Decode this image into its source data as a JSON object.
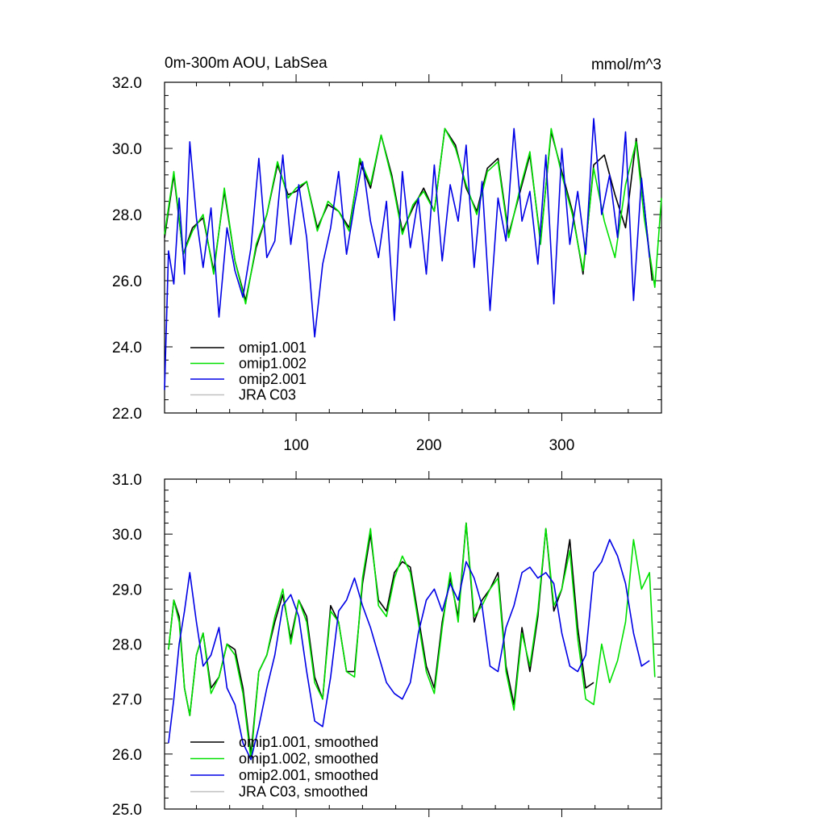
{
  "colors": {
    "omip1_001": "#000000",
    "omip1_002": "#00e000",
    "omip2_001": "#0000e6",
    "jra_c03": "#c0c0c0",
    "axis": "#000000",
    "background": "#ffffff"
  },
  "chart_data": [
    {
      "type": "line",
      "title_left": "0m-300m AOU, LabSea",
      "title_right": "mmol/m^3",
      "xlabel": "",
      "ylabel": "",
      "xlim": [
        1,
        375
      ],
      "ylim": [
        22.0,
        32.0
      ],
      "x_ticks": [
        100,
        200,
        300
      ],
      "x_tick_labels": [
        "100",
        "200",
        "300"
      ],
      "y_ticks": [
        22.0,
        24.0,
        26.0,
        28.0,
        30.0,
        32.0
      ],
      "y_tick_labels": [
        "22.0",
        "24.0",
        "26.0",
        "28.0",
        "30.0",
        "32.0"
      ],
      "legend_position": "lower-left",
      "series": [
        {
          "name": "omip1.001",
          "color_key": "omip1_001",
          "x": [
            1,
            8,
            15,
            22,
            30,
            38,
            46,
            54,
            62,
            70,
            78,
            86,
            94,
            100,
            108,
            116,
            124,
            132,
            140,
            148,
            156,
            164,
            172,
            180,
            188,
            196,
            204,
            212,
            220,
            228,
            236,
            244,
            252,
            260,
            268,
            276,
            284,
            292,
            300,
            308,
            316,
            324,
            332,
            340,
            348,
            356,
            362,
            368
          ],
          "y": [
            27.3,
            29.2,
            26.8,
            27.6,
            27.9,
            26.3,
            28.7,
            26.6,
            25.4,
            27.0,
            28.0,
            29.5,
            28.6,
            28.7,
            29.0,
            27.6,
            28.3,
            28.1,
            27.6,
            29.6,
            28.8,
            30.4,
            29.2,
            27.5,
            28.2,
            28.8,
            28.1,
            30.6,
            30.1,
            28.8,
            28.1,
            29.4,
            29.7,
            27.4,
            28.6,
            29.8,
            27.2,
            30.5,
            29.3,
            28.1,
            26.2,
            29.5,
            29.8,
            28.6,
            27.6,
            30.3,
            28.3,
            26.0
          ]
        },
        {
          "name": "omip1.002",
          "color_key": "omip1_002",
          "x": [
            1,
            8,
            15,
            22,
            30,
            38,
            46,
            54,
            62,
            70,
            78,
            86,
            94,
            100,
            108,
            116,
            124,
            132,
            140,
            148,
            156,
            164,
            172,
            180,
            188,
            196,
            204,
            212,
            220,
            228,
            236,
            244,
            252,
            260,
            268,
            276,
            284,
            292,
            300,
            308,
            316,
            324,
            332,
            340,
            348,
            356,
            362,
            370,
            375
          ],
          "y": [
            27.4,
            29.3,
            26.8,
            27.5,
            28.0,
            26.2,
            28.8,
            26.6,
            25.3,
            27.1,
            28.0,
            29.6,
            28.5,
            28.8,
            29.0,
            27.5,
            28.4,
            28.1,
            27.5,
            29.7,
            28.9,
            30.4,
            29.1,
            27.4,
            28.3,
            28.7,
            28.1,
            30.6,
            30.0,
            28.9,
            28.0,
            29.3,
            29.6,
            27.3,
            28.7,
            29.9,
            27.1,
            30.6,
            29.2,
            28.0,
            26.3,
            29.4,
            27.8,
            26.7,
            28.9,
            30.2,
            27.9,
            25.8,
            28.5
          ]
        },
        {
          "name": "omip2.001",
          "color_key": "omip2_001",
          "x": [
            1,
            4,
            8,
            12,
            16,
            20,
            25,
            30,
            36,
            42,
            48,
            54,
            60,
            66,
            72,
            78,
            84,
            90,
            96,
            102,
            108,
            114,
            120,
            126,
            132,
            138,
            144,
            150,
            156,
            162,
            168,
            174,
            180,
            186,
            192,
            198,
            204,
            210,
            216,
            222,
            228,
            234,
            240,
            246,
            252,
            258,
            264,
            270,
            276,
            282,
            288,
            294,
            300,
            306,
            312,
            318,
            324,
            330,
            336,
            342,
            348,
            354,
            360,
            366
          ],
          "y": [
            22.7,
            26.9,
            25.9,
            28.5,
            26.2,
            30.2,
            27.9,
            26.4,
            28.2,
            24.9,
            27.6,
            26.3,
            25.5,
            27.0,
            29.7,
            26.7,
            27.2,
            29.8,
            27.1,
            28.9,
            27.3,
            24.3,
            26.5,
            27.6,
            29.3,
            26.8,
            28.3,
            29.6,
            27.8,
            26.7,
            28.4,
            24.8,
            29.3,
            27.0,
            28.5,
            26.2,
            29.5,
            26.6,
            28.9,
            27.8,
            30.1,
            26.4,
            29.0,
            25.1,
            28.5,
            27.2,
            30.6,
            27.8,
            28.7,
            26.5,
            29.8,
            25.3,
            30.0,
            27.1,
            28.7,
            26.8,
            30.9,
            28.0,
            29.2,
            27.3,
            30.5,
            25.4,
            29.1,
            26.7
          ]
        },
        {
          "name": "JRA C03",
          "color_key": "jra_c03",
          "x": [],
          "y": []
        }
      ]
    },
    {
      "type": "line",
      "title_left": "",
      "title_right": "",
      "xlabel": "",
      "ylabel": "",
      "xlim": [
        1,
        375
      ],
      "ylim": [
        25.0,
        31.0
      ],
      "x_ticks": [
        100,
        200,
        300
      ],
      "x_tick_labels": [
        "",
        "",
        ""
      ],
      "y_ticks": [
        25.0,
        26.0,
        27.0,
        28.0,
        29.0,
        30.0,
        31.0
      ],
      "y_tick_labels": [
        "25.0",
        "26.0",
        "27.0",
        "28.0",
        "29.0",
        "30.0",
        "31.0"
      ],
      "legend_position": "lower-left",
      "series": [
        {
          "name": "omip1.001, smoothed",
          "color_key": "omip1_001",
          "x": [
            4,
            8,
            12,
            16,
            20,
            25,
            30,
            36,
            42,
            48,
            54,
            60,
            66,
            72,
            78,
            84,
            90,
            96,
            102,
            108,
            114,
            120,
            126,
            132,
            138,
            144,
            150,
            156,
            162,
            168,
            174,
            180,
            186,
            192,
            198,
            204,
            210,
            216,
            222,
            228,
            234,
            240,
            246,
            252,
            258,
            264,
            270,
            276,
            282,
            288,
            294,
            300,
            306,
            312,
            318,
            324
          ],
          "y": [
            27.9,
            28.8,
            28.5,
            27.2,
            26.7,
            27.8,
            28.2,
            27.2,
            27.4,
            28.0,
            27.9,
            27.2,
            26.0,
            27.5,
            27.8,
            28.4,
            28.9,
            28.1,
            28.8,
            28.5,
            27.4,
            27.0,
            28.7,
            28.4,
            27.5,
            27.5,
            29.1,
            30.0,
            28.8,
            28.6,
            29.3,
            29.5,
            29.4,
            28.5,
            27.6,
            27.2,
            28.4,
            29.2,
            28.5,
            30.2,
            28.4,
            28.8,
            29.0,
            29.3,
            27.6,
            26.9,
            28.3,
            27.5,
            28.5,
            30.1,
            28.6,
            29.0,
            29.9,
            28.3,
            27.2,
            27.3
          ]
        },
        {
          "name": "omip1.002, smoothed",
          "color_key": "omip1_002",
          "x": [
            4,
            8,
            12,
            16,
            20,
            25,
            30,
            36,
            42,
            48,
            54,
            60,
            66,
            72,
            78,
            84,
            90,
            96,
            102,
            108,
            114,
            120,
            126,
            132,
            138,
            144,
            150,
            156,
            162,
            168,
            174,
            180,
            186,
            192,
            198,
            204,
            210,
            216,
            222,
            228,
            234,
            240,
            246,
            252,
            258,
            264,
            270,
            276,
            282,
            288,
            294,
            300,
            306,
            312,
            318,
            324,
            330,
            336,
            342,
            348,
            354,
            360,
            366,
            370
          ],
          "y": [
            27.9,
            28.8,
            28.4,
            27.2,
            26.7,
            27.8,
            28.2,
            27.1,
            27.4,
            28.0,
            27.8,
            27.1,
            25.9,
            27.5,
            27.8,
            28.5,
            29.0,
            28.0,
            28.8,
            28.4,
            27.3,
            27.0,
            28.6,
            28.4,
            27.5,
            27.4,
            29.2,
            30.1,
            28.7,
            28.5,
            29.2,
            29.6,
            29.3,
            28.4,
            27.5,
            27.1,
            28.3,
            29.3,
            28.4,
            30.2,
            28.5,
            28.7,
            29.0,
            29.2,
            27.5,
            26.8,
            28.2,
            27.6,
            28.6,
            30.1,
            28.7,
            29.0,
            29.7,
            28.1,
            27.0,
            26.9,
            28.0,
            27.3,
            27.7,
            28.4,
            29.9,
            29.0,
            29.3,
            27.4
          ]
        },
        {
          "name": "omip2.001, smoothed",
          "color_key": "omip2_001",
          "x": [
            4,
            8,
            12,
            16,
            20,
            25,
            30,
            36,
            42,
            48,
            54,
            60,
            66,
            72,
            78,
            84,
            90,
            96,
            102,
            108,
            114,
            120,
            126,
            132,
            138,
            144,
            150,
            156,
            162,
            168,
            174,
            180,
            186,
            192,
            198,
            204,
            210,
            216,
            222,
            228,
            234,
            240,
            246,
            252,
            258,
            264,
            270,
            276,
            282,
            288,
            294,
            300,
            306,
            312,
            318,
            324,
            330,
            336,
            342,
            348,
            354,
            360,
            366
          ],
          "y": [
            26.2,
            27.0,
            28.0,
            28.6,
            29.3,
            28.4,
            27.6,
            27.8,
            28.3,
            27.2,
            26.9,
            26.2,
            25.9,
            26.5,
            27.2,
            27.8,
            28.7,
            28.9,
            28.5,
            27.5,
            26.6,
            26.5,
            27.4,
            28.6,
            28.8,
            29.2,
            28.7,
            28.3,
            27.8,
            27.3,
            27.1,
            27.0,
            27.3,
            28.2,
            28.8,
            29.0,
            28.6,
            29.1,
            28.8,
            29.5,
            29.2,
            28.7,
            27.6,
            27.5,
            28.3,
            28.7,
            29.3,
            29.4,
            29.2,
            29.3,
            29.1,
            28.2,
            27.6,
            27.5,
            27.8,
            29.3,
            29.5,
            29.9,
            29.6,
            29.1,
            28.2,
            27.6,
            27.7
          ]
        },
        {
          "name": "JRA C03, smoothed",
          "color_key": "jra_c03",
          "x": [],
          "y": []
        }
      ]
    }
  ]
}
